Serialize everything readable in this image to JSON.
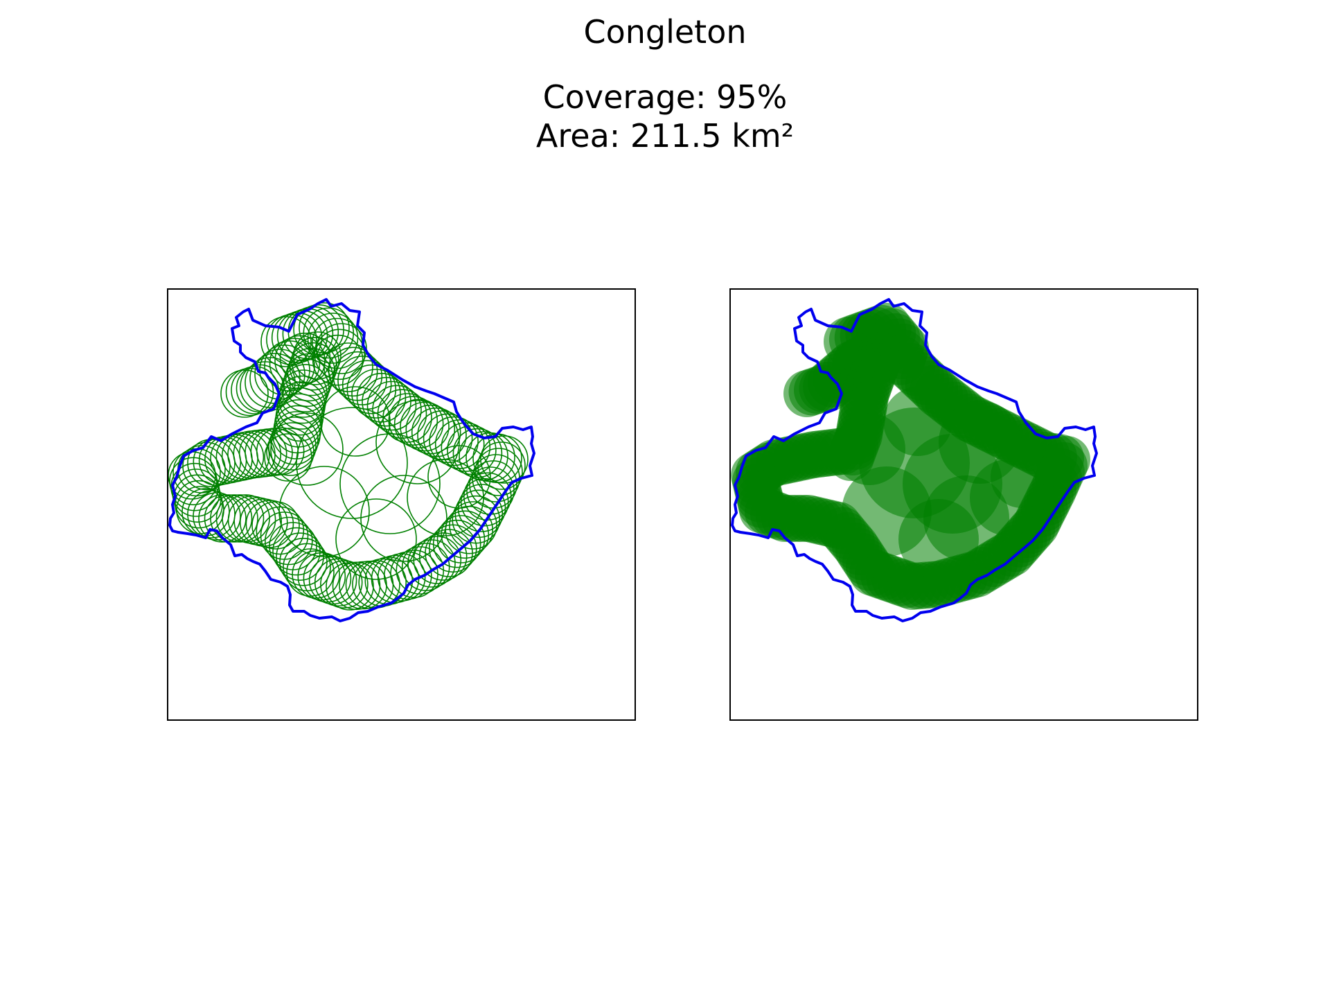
{
  "figure": {
    "title": "Congleton",
    "coverage_text": "Coverage: 95%",
    "area_text": "Area: 211.5 km²"
  },
  "colors": {
    "boundary": "#0000ee",
    "coverage_circles": "#008000",
    "frame": "#000000",
    "background": "#ffffff"
  },
  "chart_data": [
    {
      "type": "map",
      "panel": "left",
      "style": "circle outlines",
      "layers": [
        "district-boundary",
        "coverage-circles"
      ],
      "coverage_percent": 95,
      "area_km2": 211.5
    },
    {
      "type": "map",
      "panel": "right",
      "style": "filled circles",
      "layers": [
        "district-boundary",
        "coverage-circles"
      ],
      "coverage_percent": 95,
      "area_km2": 211.5
    }
  ]
}
